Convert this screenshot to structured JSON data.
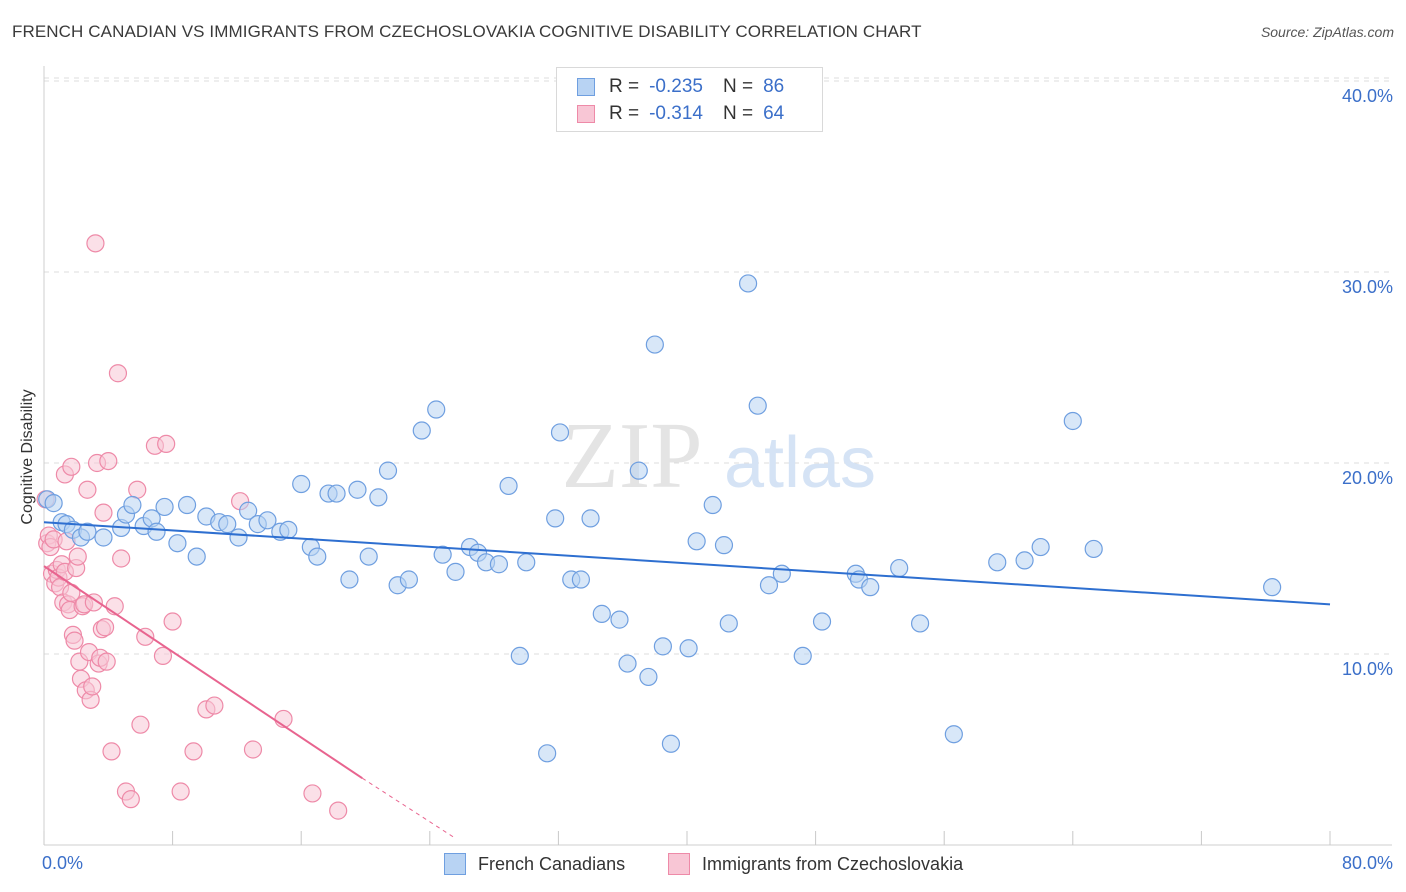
{
  "title": "FRENCH CANADIAN VS IMMIGRANTS FROM CZECHOSLOVAKIA COGNITIVE DISABILITY CORRELATION CHART",
  "source": "Source: ZipAtlas.com",
  "watermark": {
    "zip": "ZIP",
    "atlas": "atlas"
  },
  "legend_top": {
    "rows": [
      {
        "r_label": "R =",
        "r_value": "-0.235",
        "n_label": "N =",
        "n_value": "86"
      },
      {
        "r_label": "R =",
        "r_value": "-0.314",
        "n_label": "N =",
        "n_value": "64"
      }
    ]
  },
  "colors": {
    "blue_fill": "#b8d3f3",
    "blue_stroke": "#6f9fe0",
    "blue_line": "#2e6fd0",
    "pink_fill": "#f8c6d5",
    "pink_stroke": "#ee8aa8",
    "pink_line": "#e8648f",
    "tick_text": "#3b6fc9",
    "grid": "#dcdcdc"
  },
  "chart_data": {
    "type": "scatter",
    "title": "FRENCH CANADIAN VS IMMIGRANTS FROM CZECHOSLOVAKIA COGNITIVE DISABILITY CORRELATION CHART",
    "xlabel": "",
    "ylabel": "Cognitive Disability",
    "xlim": [
      0,
      80
    ],
    "ylim": [
      0,
      41
    ],
    "x_tick_labels": [
      "0.0%",
      "80.0%"
    ],
    "y_ticks": [
      10,
      20,
      30,
      40
    ],
    "y_tick_labels": [
      "10.0%",
      "20.0%",
      "30.0%",
      "40.0%"
    ],
    "grid": true,
    "legend_position": "bottom",
    "series": [
      {
        "name": "French Canadians",
        "color": "#6f9fe0",
        "r": -0.235,
        "n": 86,
        "trend": {
          "x": [
            0,
            80
          ],
          "y": [
            16.9,
            12.6
          ]
        },
        "points": [
          [
            0.2,
            18.1
          ],
          [
            0.6,
            17.9
          ],
          [
            1.1,
            16.9
          ],
          [
            1.4,
            16.8
          ],
          [
            1.8,
            16.5
          ],
          [
            2.3,
            16.1
          ],
          [
            2.7,
            16.4
          ],
          [
            3.7,
            16.1
          ],
          [
            4.8,
            16.6
          ],
          [
            5.1,
            17.3
          ],
          [
            5.5,
            17.8
          ],
          [
            6.2,
            16.7
          ],
          [
            6.7,
            17.1
          ],
          [
            7.0,
            16.4
          ],
          [
            7.5,
            17.7
          ],
          [
            8.3,
            15.8
          ],
          [
            8.9,
            17.8
          ],
          [
            9.5,
            15.1
          ],
          [
            10.1,
            17.2
          ],
          [
            10.9,
            16.9
          ],
          [
            11.4,
            16.8
          ],
          [
            12.1,
            16.1
          ],
          [
            12.7,
            17.5
          ],
          [
            13.3,
            16.8
          ],
          [
            13.9,
            17.0
          ],
          [
            14.7,
            16.4
          ],
          [
            15.2,
            16.5
          ],
          [
            16.0,
            18.9
          ],
          [
            16.6,
            15.6
          ],
          [
            17.0,
            15.1
          ],
          [
            17.7,
            18.4
          ],
          [
            18.2,
            18.4
          ],
          [
            19.0,
            13.9
          ],
          [
            19.5,
            18.6
          ],
          [
            20.2,
            15.1
          ],
          [
            20.8,
            18.2
          ],
          [
            21.4,
            19.6
          ],
          [
            22.0,
            13.6
          ],
          [
            22.7,
            13.9
          ],
          [
            23.5,
            21.7
          ],
          [
            24.4,
            22.8
          ],
          [
            24.8,
            15.2
          ],
          [
            25.6,
            14.3
          ],
          [
            26.5,
            15.6
          ],
          [
            27.0,
            15.3
          ],
          [
            27.5,
            14.8
          ],
          [
            28.3,
            14.7
          ],
          [
            28.9,
            18.8
          ],
          [
            29.6,
            9.9
          ],
          [
            30.0,
            14.8
          ],
          [
            31.3,
            4.8
          ],
          [
            31.8,
            17.1
          ],
          [
            32.1,
            21.6
          ],
          [
            32.8,
            13.9
          ],
          [
            33.4,
            13.9
          ],
          [
            34.0,
            17.1
          ],
          [
            34.7,
            12.1
          ],
          [
            35.8,
            11.8
          ],
          [
            36.3,
            9.5
          ],
          [
            37.0,
            19.6
          ],
          [
            37.6,
            8.8
          ],
          [
            38.0,
            26.2
          ],
          [
            38.5,
            10.4
          ],
          [
            39.0,
            5.3
          ],
          [
            40.1,
            10.3
          ],
          [
            40.6,
            15.9
          ],
          [
            41.6,
            17.8
          ],
          [
            42.3,
            15.7
          ],
          [
            42.6,
            11.6
          ],
          [
            43.8,
            29.4
          ],
          [
            44.4,
            23.0
          ],
          [
            45.1,
            13.6
          ],
          [
            45.9,
            14.2
          ],
          [
            47.2,
            9.9
          ],
          [
            48.4,
            11.7
          ],
          [
            50.5,
            14.2
          ],
          [
            50.7,
            13.9
          ],
          [
            51.4,
            13.5
          ],
          [
            53.2,
            14.5
          ],
          [
            54.5,
            11.6
          ],
          [
            56.6,
            5.8
          ],
          [
            59.3,
            14.8
          ],
          [
            61.0,
            14.9
          ],
          [
            62.0,
            15.6
          ],
          [
            64.0,
            22.2
          ],
          [
            65.3,
            15.5
          ],
          [
            76.4,
            13.5
          ]
        ]
      },
      {
        "name": "Immigrants from Czechoslovakia",
        "color": "#ee8aa8",
        "r": -0.314,
        "n": 64,
        "trend": {
          "x": [
            0,
            19.8
          ],
          "y": [
            14.6,
            3.5
          ]
        },
        "trend_dashed": {
          "x": [
            19.8,
            25.5
          ],
          "y": [
            3.5,
            0.4
          ]
        },
        "points": [
          [
            0.1,
            18.1
          ],
          [
            0.2,
            15.8
          ],
          [
            0.3,
            16.2
          ],
          [
            0.4,
            15.6
          ],
          [
            0.5,
            14.2
          ],
          [
            0.6,
            16.0
          ],
          [
            0.7,
            13.7
          ],
          [
            0.8,
            14.4
          ],
          [
            0.9,
            14.0
          ],
          [
            1.0,
            13.5
          ],
          [
            1.1,
            14.7
          ],
          [
            1.2,
            12.7
          ],
          [
            1.3,
            14.3
          ],
          [
            1.4,
            15.9
          ],
          [
            1.5,
            12.6
          ],
          [
            1.6,
            12.3
          ],
          [
            1.7,
            13.2
          ],
          [
            1.8,
            11.0
          ],
          [
            1.9,
            10.7
          ],
          [
            2.0,
            14.5
          ],
          [
            2.1,
            15.1
          ],
          [
            2.2,
            9.6
          ],
          [
            2.3,
            8.7
          ],
          [
            2.4,
            12.5
          ],
          [
            2.5,
            12.6
          ],
          [
            2.6,
            8.1
          ],
          [
            2.7,
            18.6
          ],
          [
            2.8,
            10.1
          ],
          [
            2.9,
            7.6
          ],
          [
            3.0,
            8.3
          ],
          [
            3.1,
            12.7
          ],
          [
            3.2,
            31.5
          ],
          [
            3.3,
            20.0
          ],
          [
            3.4,
            9.5
          ],
          [
            3.5,
            9.8
          ],
          [
            3.6,
            11.3
          ],
          [
            3.7,
            17.4
          ],
          [
            3.8,
            11.4
          ],
          [
            3.9,
            9.6
          ],
          [
            4.0,
            20.1
          ],
          [
            4.2,
            4.9
          ],
          [
            4.4,
            12.5
          ],
          [
            4.6,
            24.7
          ],
          [
            4.8,
            15.0
          ],
          [
            5.1,
            2.8
          ],
          [
            5.4,
            2.4
          ],
          [
            5.8,
            18.6
          ],
          [
            6.0,
            6.3
          ],
          [
            6.3,
            10.9
          ],
          [
            6.9,
            20.9
          ],
          [
            7.4,
            9.9
          ],
          [
            7.6,
            21.0
          ],
          [
            8.0,
            11.7
          ],
          [
            8.5,
            2.8
          ],
          [
            9.3,
            4.9
          ],
          [
            10.1,
            7.1
          ],
          [
            10.6,
            7.3
          ],
          [
            12.2,
            18.0
          ],
          [
            13.0,
            5.0
          ],
          [
            14.9,
            6.6
          ],
          [
            16.7,
            2.7
          ],
          [
            18.3,
            1.8
          ],
          [
            1.3,
            19.4
          ],
          [
            1.7,
            19.8
          ]
        ]
      }
    ]
  }
}
